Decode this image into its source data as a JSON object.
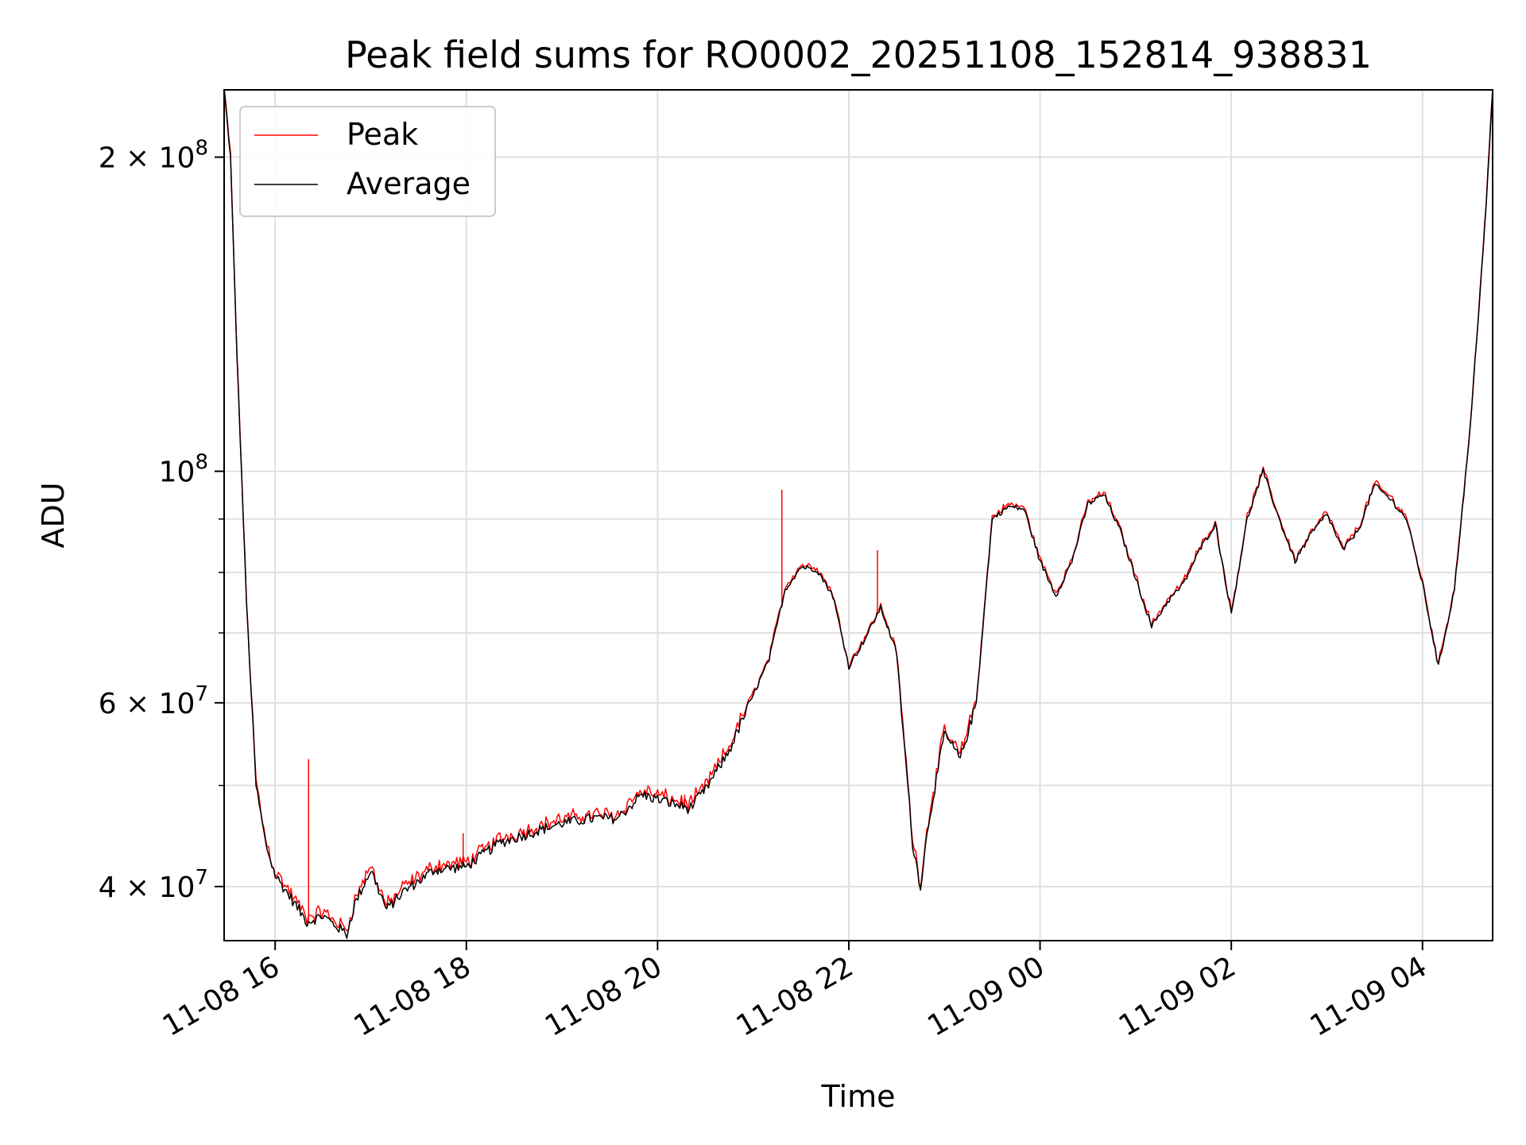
{
  "chart_data": {
    "type": "line",
    "title": "Peak field sums for RO0002_20251108_152814_938831",
    "xlabel": "Time",
    "ylabel": "ADU",
    "yscale": "log",
    "ylim": [
      35500000,
      232000000
    ],
    "xlim": [
      "2025-11-08 15:28",
      "2025-11-09 04:44"
    ],
    "grid": true,
    "legend_position": "upper-left",
    "x_ticks": [
      {
        "x": "2025-11-08 16:00",
        "label": "11-08 16"
      },
      {
        "x": "2025-11-08 18:00",
        "label": "11-08 18"
      },
      {
        "x": "2025-11-08 20:00",
        "label": "11-08 20"
      },
      {
        "x": "2025-11-08 22:00",
        "label": "11-08 22"
      },
      {
        "x": "2025-11-09 00:00",
        "label": "11-09 00"
      },
      {
        "x": "2025-11-09 02:00",
        "label": "11-09 02"
      },
      {
        "x": "2025-11-09 04:00",
        "label": "11-09 04"
      }
    ],
    "y_ticks": [
      {
        "value": 40000000,
        "mantissa": "4",
        "exp": "7"
      },
      {
        "value": 60000000,
        "mantissa": "6",
        "exp": "7"
      },
      {
        "value": 100000000,
        "mantissa": "",
        "exp": "8"
      },
      {
        "value": 200000000,
        "mantissa": "2",
        "exp": "8"
      }
    ],
    "y_minor_ticks": [
      50000000,
      70000000,
      80000000,
      90000000
    ],
    "series": [
      {
        "name": "Average",
        "color": "#000000",
        "x": [
          "2025-11-08 15:28",
          "2025-11-08 15:32",
          "2025-11-08 15:36",
          "2025-11-08 15:42",
          "2025-11-08 15:48",
          "2025-11-08 15:54",
          "2025-11-08 16:00",
          "2025-11-08 16:10",
          "2025-11-08 16:20",
          "2025-11-08 16:30",
          "2025-11-08 16:40",
          "2025-11-08 16:45",
          "2025-11-08 16:50",
          "2025-11-08 17:00",
          "2025-11-08 17:10",
          "2025-11-08 17:20",
          "2025-11-08 17:40",
          "2025-11-08 18:00",
          "2025-11-08 18:20",
          "2025-11-08 18:40",
          "2025-11-08 19:00",
          "2025-11-08 19:20",
          "2025-11-08 19:35",
          "2025-11-08 19:50",
          "2025-11-08 20:00",
          "2025-11-08 20:10",
          "2025-11-08 20:20",
          "2025-11-08 20:30",
          "2025-11-08 20:45",
          "2025-11-08 21:00",
          "2025-11-08 21:10",
          "2025-11-08 21:20",
          "2025-11-08 21:30",
          "2025-11-08 21:40",
          "2025-11-08 21:50",
          "2025-11-08 22:00",
          "2025-11-08 22:10",
          "2025-11-08 22:20",
          "2025-11-08 22:30",
          "2025-11-08 22:40",
          "2025-11-08 22:45",
          "2025-11-08 22:50",
          "2025-11-08 23:00",
          "2025-11-08 23:10",
          "2025-11-08 23:20",
          "2025-11-08 23:30",
          "2025-11-08 23:40",
          "2025-11-08 23:50",
          "2025-11-09 00:00",
          "2025-11-09 00:10",
          "2025-11-09 00:20",
          "2025-11-09 00:30",
          "2025-11-09 00:40",
          "2025-11-09 00:50",
          "2025-11-09 01:00",
          "2025-11-09 01:10",
          "2025-11-09 01:20",
          "2025-11-09 01:30",
          "2025-11-09 01:40",
          "2025-11-09 01:50",
          "2025-11-09 02:00",
          "2025-11-09 02:10",
          "2025-11-09 02:20",
          "2025-11-09 02:30",
          "2025-11-09 02:40",
          "2025-11-09 02:50",
          "2025-11-09 03:00",
          "2025-11-09 03:10",
          "2025-11-09 03:20",
          "2025-11-09 03:30",
          "2025-11-09 03:40",
          "2025-11-09 03:50",
          "2025-11-09 04:00",
          "2025-11-09 04:10",
          "2025-11-09 04:20",
          "2025-11-09 04:30",
          "2025-11-09 04:40",
          "2025-11-09 04:44"
        ],
        "values": [
          232000000,
          200000000,
          130000000,
          75000000,
          50000000,
          44000000,
          41000000,
          39000000,
          37000000,
          37500000,
          36500000,
          36000000,
          38500000,
          41500000,
          38000000,
          39500000,
          41500000,
          41800000,
          44000000,
          45000000,
          46000000,
          46500000,
          46500000,
          49000000,
          48500000,
          48000000,
          47500000,
          49500000,
          54000000,
          61000000,
          66000000,
          77000000,
          81000000,
          80500000,
          76000000,
          65000000,
          69000000,
          74000000,
          67000000,
          44000000,
          40000000,
          46000000,
          56000000,
          53000000,
          60000000,
          90000000,
          92500000,
          92000000,
          82000000,
          76000000,
          82000000,
          93000000,
          95000000,
          88000000,
          79000000,
          71000000,
          75000000,
          78000000,
          84000000,
          89000000,
          73000000,
          90000000,
          100000000,
          90000000,
          82000000,
          87000000,
          91000000,
          84000000,
          88000000,
          97000000,
          94000000,
          90000000,
          78000000,
          65000000,
          77000000,
          110000000,
          180000000,
          232000000
        ]
      },
      {
        "name": "Peak",
        "color": "#ff0000",
        "spikes": [
          {
            "x": "2025-11-08 16:21",
            "value": 53000000
          },
          {
            "x": "2025-11-08 21:18",
            "value": 96000000
          },
          {
            "x": "2025-11-08 22:18",
            "value": 84000000
          },
          {
            "x": "2025-11-08 20:17",
            "value": 49000000
          },
          {
            "x": "2025-11-08 17:58",
            "value": 45000000
          }
        ]
      }
    ]
  }
}
